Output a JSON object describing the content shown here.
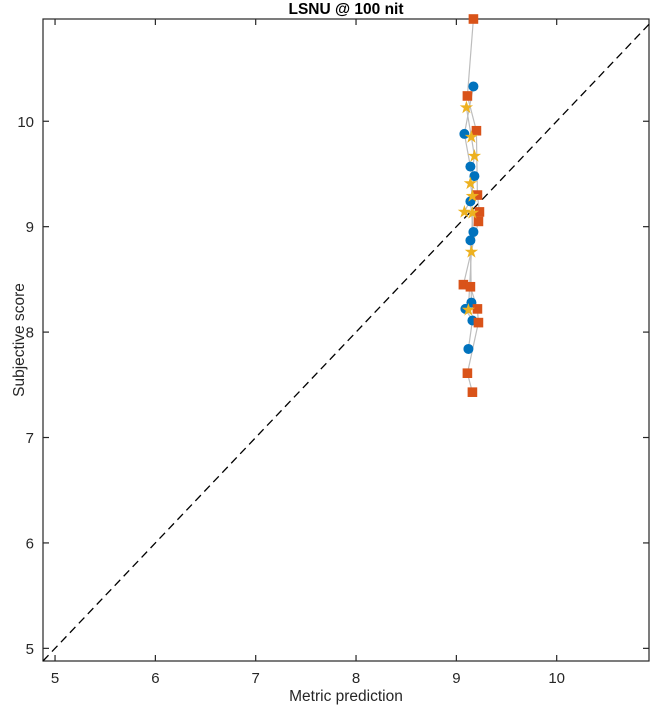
{
  "title": "LSNU @ 100 nit",
  "chart_data": {
    "type": "scatter",
    "title": "LSNU @ 100 nit",
    "xlabel": "Metric prediction",
    "ylabel": "Subjective score",
    "xlim": [
      4.88,
      10.92
    ],
    "ylim": [
      4.88,
      10.97
    ],
    "xticks": [
      5,
      6,
      7,
      8,
      9,
      10
    ],
    "yticks": [
      5,
      6,
      7,
      8,
      9,
      10
    ],
    "grid": false,
    "legend": "none",
    "background": "#ffffff",
    "axis_color": "#262626",
    "identity_line": {
      "style": "dashed",
      "color": "#000000",
      "from": 4.88,
      "to": 10.92
    },
    "connector_color": "#bdbdbd",
    "series": [
      {
        "name": "series-circles",
        "marker": "circle",
        "color": "#0072BD",
        "points": [
          [
            9.17,
            10.33
          ],
          [
            9.08,
            9.88
          ],
          [
            9.14,
            9.57
          ],
          [
            9.18,
            9.48
          ],
          [
            9.14,
            9.24
          ],
          [
            9.17,
            8.95
          ],
          [
            9.14,
            8.87
          ],
          [
            9.15,
            8.28
          ],
          [
            9.09,
            8.22
          ],
          [
            9.16,
            8.11
          ],
          [
            9.12,
            7.84
          ]
        ]
      },
      {
        "name": "series-squares",
        "marker": "square",
        "color": "#D95319",
        "points": [
          [
            9.17,
            10.97
          ],
          [
            9.11,
            10.24
          ],
          [
            9.2,
            9.91
          ],
          [
            9.21,
            9.3
          ],
          [
            9.23,
            9.14
          ],
          [
            9.22,
            9.05
          ],
          [
            9.07,
            8.45
          ],
          [
            9.14,
            8.43
          ],
          [
            9.21,
            8.22
          ],
          [
            9.22,
            8.09
          ],
          [
            9.11,
            7.61
          ],
          [
            9.16,
            7.43
          ]
        ]
      },
      {
        "name": "series-stars",
        "marker": "star",
        "color": "#EDB120",
        "points": [
          [
            9.1,
            10.13
          ],
          [
            9.15,
            9.85
          ],
          [
            9.18,
            9.67
          ],
          [
            9.14,
            9.41
          ],
          [
            9.16,
            9.29
          ],
          [
            9.08,
            9.14
          ],
          [
            9.16,
            9.13
          ],
          [
            9.15,
            8.76
          ],
          [
            9.12,
            8.21
          ]
        ]
      }
    ]
  }
}
